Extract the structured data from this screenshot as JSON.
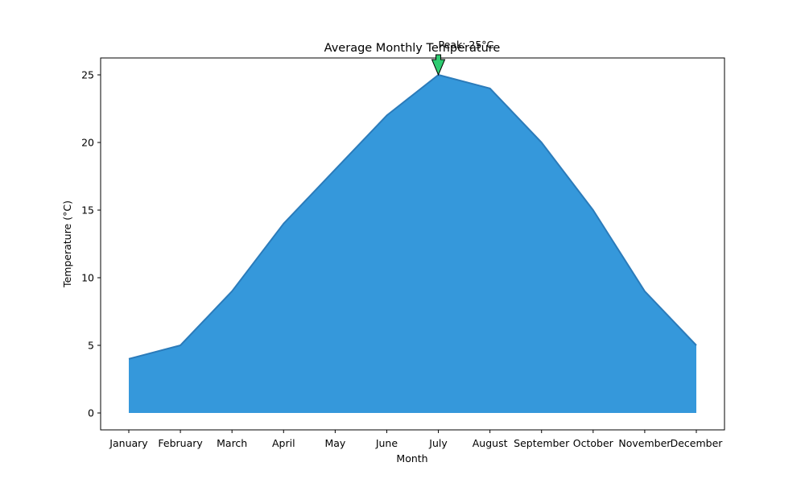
{
  "chart_data": {
    "type": "area",
    "title": "Average Monthly Temperature",
    "xlabel": "Month",
    "ylabel": "Temperature (°C)",
    "categories": [
      "January",
      "February",
      "March",
      "April",
      "May",
      "June",
      "July",
      "August",
      "September",
      "October",
      "November",
      "December"
    ],
    "series": [
      {
        "values": [
          4,
          5,
          9,
          14,
          18,
          22,
          25,
          24,
          20,
          15,
          9,
          5
        ]
      }
    ],
    "yticks": [
      0,
      5,
      10,
      15,
      20,
      25
    ],
    "ylim": [
      -1.25,
      26.25
    ],
    "grid": false,
    "legend": "none",
    "fill_color": "#3598db",
    "line_color": "#2b7bba",
    "annotation": {
      "text": "Peak: 25°C",
      "category": "July",
      "value": 25,
      "arrow_color": "#2ecc71"
    }
  }
}
